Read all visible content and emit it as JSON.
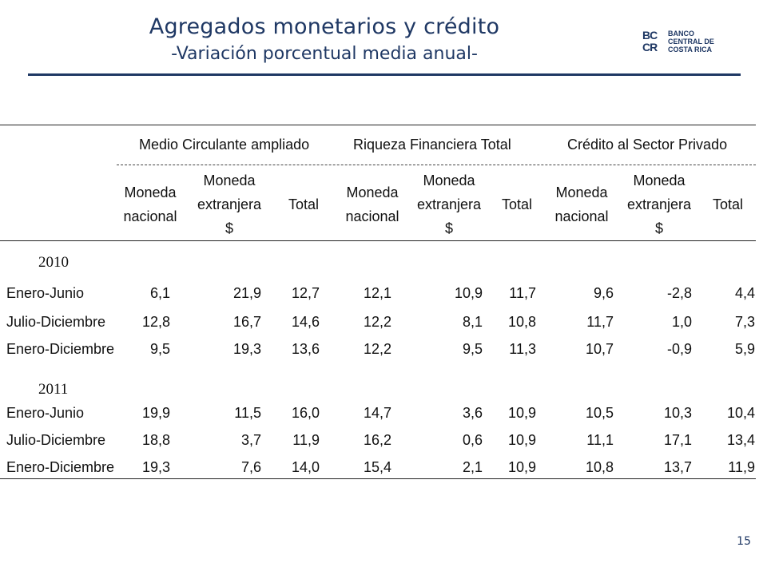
{
  "header": {
    "title": "Agregados monetarios y crédito",
    "subtitle": "-Variación porcentual media anual-"
  },
  "logo": {
    "mark_top": "BC",
    "mark_bottom": "CR",
    "line1": "BANCO",
    "line2": "CENTRAL DE",
    "line3": "COSTA RICA",
    "color": "#1f3864"
  },
  "table": {
    "groups": [
      "Medio Circulante ampliado",
      "Riqueza Financiera  Total",
      "Crédito al Sector Privado"
    ],
    "subheaders": [
      [
        "Moneda",
        "nacional"
      ],
      [
        "Moneda",
        "extranjera",
        "$"
      ],
      [
        "Total"
      ],
      [
        "Moneda",
        "nacional"
      ],
      [
        "Moneda",
        "extranjera",
        "$"
      ],
      [
        "Total"
      ],
      [
        "Moneda",
        "nacional"
      ],
      [
        "Moneda",
        "extranjera",
        "$"
      ],
      [
        "Total"
      ]
    ],
    "sections": [
      {
        "year": "2010",
        "rows": [
          {
            "label": "Enero-Junio",
            "values": [
              "6,1",
              "21,9",
              "12,7",
              "12,1",
              "10,9",
              "11,7",
              "9,6",
              "-2,8",
              "4,4"
            ]
          },
          {
            "label": "Julio-Diciembre",
            "values": [
              "12,8",
              "16,7",
              "14,6",
              "12,2",
              "8,1",
              "10,8",
              "11,7",
              "1,0",
              "7,3"
            ]
          },
          {
            "label": "Enero-Diciembre",
            "values": [
              "9,5",
              "19,3",
              "13,6",
              "12,2",
              "9,5",
              "11,3",
              "10,7",
              "-0,9",
              "5,9"
            ]
          }
        ]
      },
      {
        "year": "2011",
        "rows": [
          {
            "label": "Enero-Junio",
            "values": [
              "19,9",
              "11,5",
              "16,0",
              "14,7",
              "3,6",
              "10,9",
              "10,5",
              "10,3",
              "10,4"
            ]
          },
          {
            "label": "Julio-Diciembre",
            "values": [
              "18,8",
              "3,7",
              "11,9",
              "16,2",
              "0,6",
              "10,9",
              "11,1",
              "17,1",
              "13,4"
            ]
          },
          {
            "label": "Enero-Diciembre",
            "values": [
              "19,3",
              "7,6",
              "14,0",
              "15,4",
              "2,1",
              "10,9",
              "10,8",
              "13,7",
              "11,9"
            ]
          }
        ]
      }
    ]
  },
  "page_number": "15"
}
